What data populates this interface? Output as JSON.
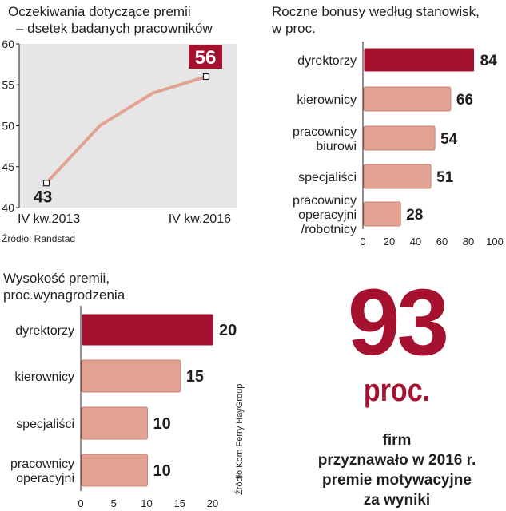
{
  "chart_data": [
    {
      "type": "line",
      "title_lines": [
        "Oczekiwania dotyczące premii",
        "– dsetek badanych pracowników"
      ],
      "x": [
        "IV kw.2013",
        "",
        "",
        "IV kw.2016"
      ],
      "values": [
        43,
        50,
        54,
        56
      ],
      "ylim": [
        40,
        60
      ],
      "yticks": [
        40,
        45,
        50,
        55,
        60
      ],
      "start_label": "43",
      "end_label": "56",
      "x_tick_labels": [
        "IV kw.2013",
        "IV kw.2016"
      ],
      "source": "Źródło: Randstad",
      "line_color": "#e3a393",
      "highlight_color": "#a5112e"
    },
    {
      "type": "bar",
      "orientation": "horizontal",
      "title_lines": [
        "Roczne bonusy według stanowisk,",
        "w proc."
      ],
      "categories": [
        [
          "dyrektorzy"
        ],
        [
          "kierownicy"
        ],
        [
          "pracownicy",
          "biurowi"
        ],
        [
          "specjaliści"
        ],
        [
          "pracownicy",
          "operacyjni",
          "/robotnicy"
        ]
      ],
      "values": [
        84,
        66,
        54,
        51,
        28
      ],
      "value_labels": [
        "84",
        "66",
        "54",
        "51",
        "28"
      ],
      "xlim": [
        0,
        100
      ],
      "xticks": [
        "0",
        "20",
        "40",
        "60",
        "80",
        "100"
      ],
      "bar_colors": [
        "#a5112e",
        "#e3a393",
        "#e3a393",
        "#e3a393",
        "#e3a393"
      ]
    },
    {
      "type": "bar",
      "orientation": "horizontal",
      "title_lines": [
        "Wysokość premii,",
        "proc.wynagrodzenia"
      ],
      "categories": [
        [
          "dyrektorzy"
        ],
        [
          "kierownicy"
        ],
        [
          "specjaliści"
        ],
        [
          "pracownicy",
          "operacyjni"
        ]
      ],
      "values": [
        20,
        15,
        10,
        10
      ],
      "value_labels": [
        "20",
        "15",
        "10",
        "10"
      ],
      "xlim": [
        0,
        20
      ],
      "xticks": [
        "0",
        "5",
        "10",
        "15",
        "20"
      ],
      "bar_colors": [
        "#a5112e",
        "#e3a393",
        "#e3a393",
        "#e3a393"
      ],
      "source": "Źródło:Korn Ferry HayGroup"
    }
  ],
  "highlight": {
    "number": "93",
    "unit": "proc.",
    "lines": [
      "firm",
      "przyznawało w  2016 r.",
      "premie motywacyjne",
      "za wyniki"
    ]
  }
}
